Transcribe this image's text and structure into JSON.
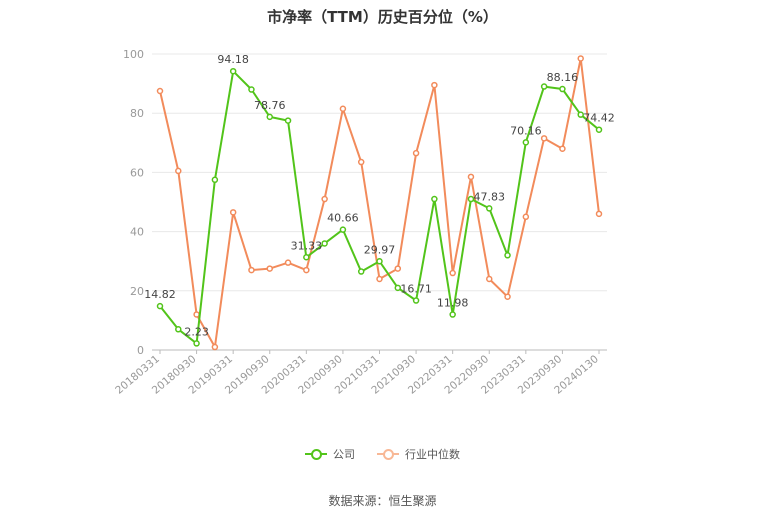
{
  "chart_data": {
    "type": "line",
    "title": "市净率（TTM）历史百分位（%）",
    "xlabel": "",
    "ylabel": "",
    "ylim": [
      0,
      100
    ],
    "yticks": [
      0,
      20,
      40,
      60,
      80,
      100
    ],
    "grid": true,
    "legend_position": "bottom",
    "source": "数据来源：恒生聚源",
    "x": [
      "20180331",
      "20180630",
      "20180930",
      "20181231",
      "20190331",
      "20190630",
      "20190930",
      "20191231",
      "20200331",
      "20200630",
      "20200930",
      "20201231",
      "20210331",
      "20210630",
      "20210930",
      "20211231",
      "20220331",
      "20220630",
      "20220930",
      "20221231",
      "20230331",
      "20230630",
      "20230930",
      "20231231",
      "20240130"
    ],
    "x_tick_labels": [
      "20180331",
      "20180930",
      "20190331",
      "20190930",
      "20200331",
      "20200930",
      "20210331",
      "20210930",
      "20220331",
      "20220930",
      "20230331",
      "20230930",
      "20240130"
    ],
    "series": [
      {
        "name": "公司",
        "color": "#52c41a",
        "values": [
          14.82,
          7.0,
          2.23,
          57.5,
          94.18,
          88.0,
          78.76,
          77.5,
          31.33,
          36.0,
          40.66,
          26.5,
          29.97,
          21.0,
          16.71,
          51.0,
          11.98,
          51.0,
          47.83,
          32.0,
          70.16,
          89.0,
          88.16,
          79.5,
          74.42
        ],
        "labels": {
          "0": "14.82",
          "2": "2.23",
          "4": "94.18",
          "6": "78.76",
          "8": "31.33",
          "10": "40.66",
          "12": "29.97",
          "14": "16.71",
          "16": "11.98",
          "18": "47.83",
          "20": "70.16",
          "22": "88.16",
          "24": "74.42"
        }
      },
      {
        "name": "行业中位数",
        "color": "#f28b5b",
        "values": [
          87.5,
          60.5,
          12.0,
          1.0,
          46.5,
          27.0,
          27.5,
          29.5,
          27.0,
          51.0,
          81.5,
          63.5,
          24.0,
          27.5,
          66.5,
          89.5,
          26.0,
          58.5,
          24.0,
          18.0,
          45.0,
          71.5,
          68.0,
          98.5,
          46.0
        ]
      }
    ]
  }
}
